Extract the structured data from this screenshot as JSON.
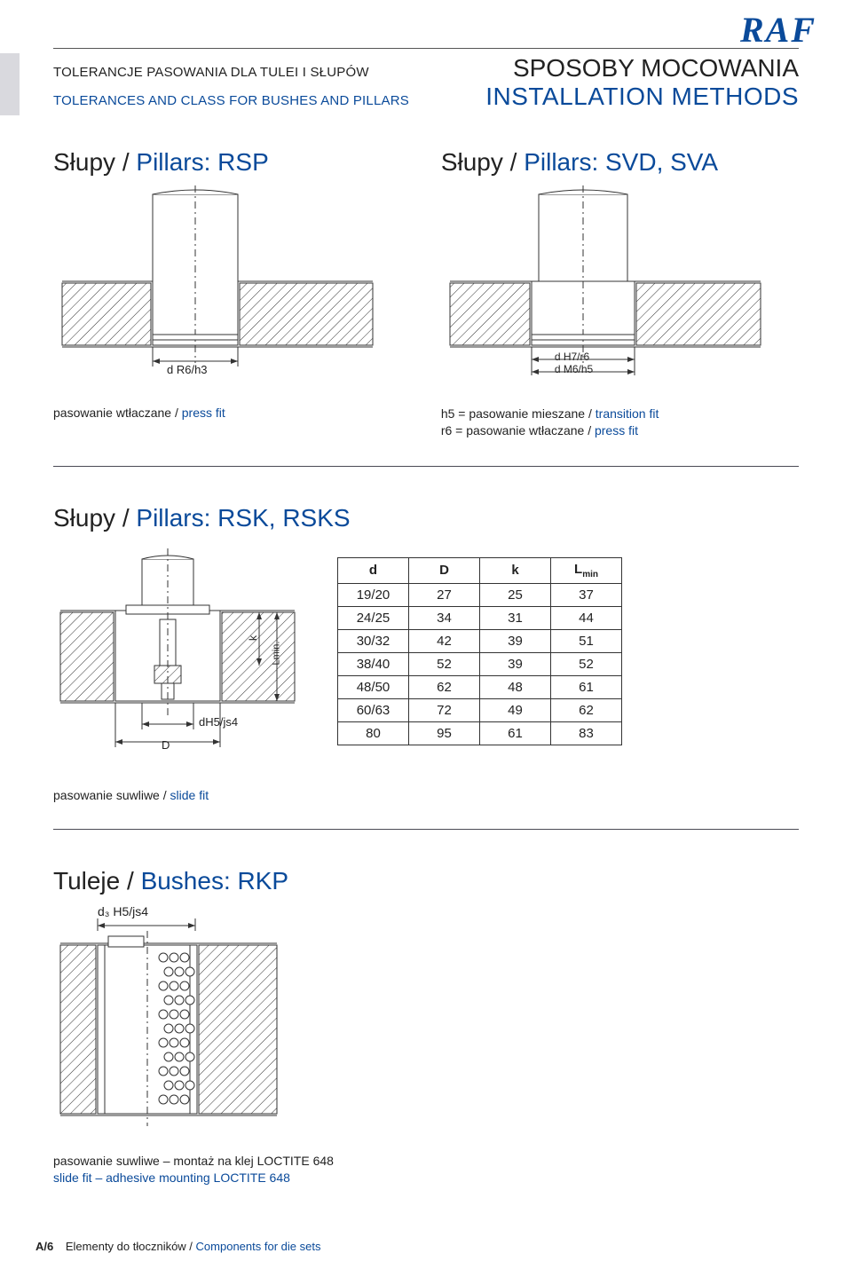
{
  "logo": "RAF",
  "header": {
    "left_pl": "TOLERANCJE PASOWANIA DLA TULEI I SŁUPÓW",
    "left_en": "TOLERANCES AND CLASS FOR BUSHES AND PILLARS",
    "right_pl": "SPOSOBY MOCOWANIA",
    "right_en": "INSTALLATION METHODS"
  },
  "rsp": {
    "title_pl": "Słupy / ",
    "title_en": "Pillars: RSP",
    "dim_label": "d R6/h3",
    "caption_pl": "pasowanie wtłaczane / ",
    "caption_en": "press fit"
  },
  "svd": {
    "title_pl": "Słupy / ",
    "title_en": "Pillars: SVD, SVA",
    "dim_label_top": "d H7/r6",
    "dim_label_bot": "d M6/h5",
    "line1_pl": "h5 = pasowanie mieszane / ",
    "line1_en": "transition fit",
    "line2_pl": "r6 = pasowanie wtłaczane / ",
    "line2_en": "press fit"
  },
  "rsk": {
    "title_pl": "Słupy / ",
    "title_en": "Pillars: RSK, RSKS",
    "dim_d": "dH5/js4",
    "dim_D": "D",
    "dim_k": "k",
    "dim_L": "Lmin.",
    "caption_pl": "pasowanie suwliwe / ",
    "caption_en": "slide fit",
    "table": {
      "columns": [
        "d",
        "D",
        "k",
        "L"
      ],
      "L_sub": "min",
      "rows": [
        [
          "19/20",
          "27",
          "25",
          "37"
        ],
        [
          "24/25",
          "34",
          "31",
          "44"
        ],
        [
          "30/32",
          "42",
          "39",
          "51"
        ],
        [
          "38/40",
          "52",
          "39",
          "52"
        ],
        [
          "48/50",
          "62",
          "48",
          "61"
        ],
        [
          "60/63",
          "72",
          "49",
          "62"
        ],
        [
          "80",
          "95",
          "61",
          "83"
        ]
      ]
    }
  },
  "rkp": {
    "title_pl": "Tuleje / ",
    "title_en": "Bushes: RKP",
    "dim_label": "d₃ H5/js4",
    "line1_pl": "pasowanie suwliwe – montaż na klej LOCTITE 648",
    "line2_en": "slide fit – adhesive mounting LOCTITE 648"
  },
  "footer": {
    "page": "A/6",
    "pl": "Elementy do tłoczników / ",
    "en": "Components for die sets"
  },
  "colors": {
    "brand_blue": "#0a4a9a",
    "text": "#222",
    "hatch": "#333"
  }
}
